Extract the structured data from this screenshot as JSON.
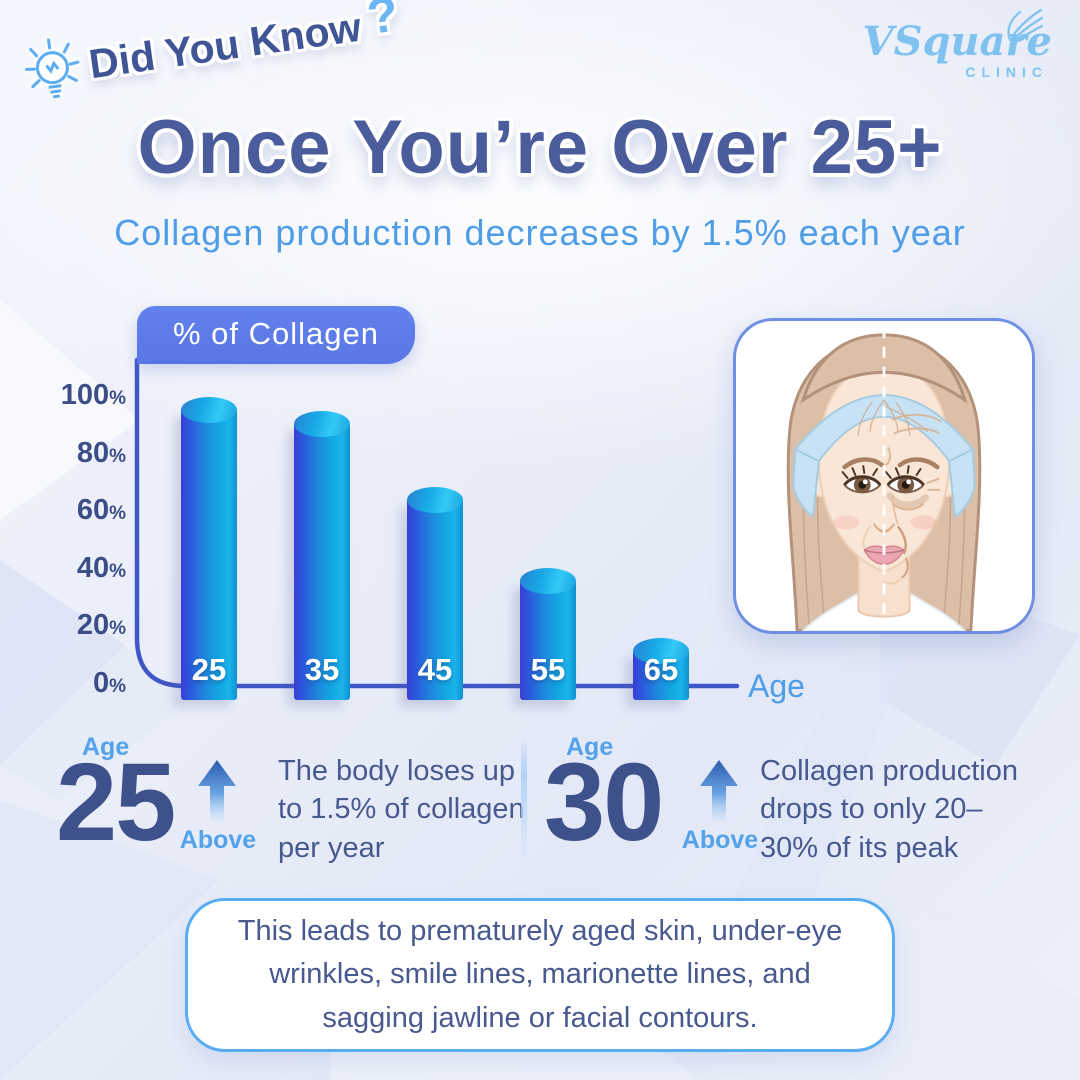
{
  "header": {
    "badge_text": "Did You Know",
    "badge_question": "?",
    "logo_name": "VSquare",
    "logo_subtitle": "CLINIC",
    "title": "Once You’re Over 25+",
    "subtitle": "Collagen production decreases by 1.5% each year"
  },
  "chart": {
    "badge_label": "% of Collagen",
    "x_axis_label": "Age",
    "y_ticks": [
      {
        "v": "100",
        "s": "%"
      },
      {
        "v": "80",
        "s": "%"
      },
      {
        "v": "60",
        "s": "%"
      },
      {
        "v": "40",
        "s": "%"
      },
      {
        "v": "20",
        "s": "%"
      },
      {
        "v": "0",
        "s": "%"
      }
    ]
  },
  "chart_data": {
    "type": "bar",
    "title": "% of Collagen",
    "xlabel": "Age",
    "ylabel": "% of Collagen",
    "categories": [
      "25",
      "35",
      "45",
      "55",
      "65"
    ],
    "values": [
      100,
      95,
      69,
      41,
      17
    ],
    "ylim": [
      0,
      100
    ],
    "y_tick_step": 20,
    "grid": false,
    "legend": "none",
    "bar_style": "3d-cylinder-blue-cyan-gradient"
  },
  "info_sections": [
    {
      "age_label": "Age",
      "age": "25",
      "above": "Above",
      "text": "The body loses up to 1.5% of collagen per year"
    },
    {
      "age_label": "Age",
      "age": "30",
      "above": "Above",
      "text": "Collagen production drops to only 20–30% of its peak"
    }
  ],
  "footer": {
    "text": "This leads to prematurely aged skin, under-eye wrinkles, smile lines, marionette lines, and sagging jawline or facial contours."
  },
  "icons": {
    "lightbulb": "lightbulb-icon",
    "swan": "swan-icon",
    "up_arrow": "up-arrow-icon",
    "face": "split-face-aging-illustration"
  },
  "colors": {
    "title": "#4b5c9d",
    "subtitle": "#4f9de6",
    "dark_text": "#48598f",
    "light_blue": "#54a2ea",
    "chart_badge_bg": "#5e7ce9",
    "axis": "#4156c6",
    "bar_left": "#3a3ed6",
    "bar_right": "#14aae4",
    "bar_top": "#29c2f2",
    "box_border": "#58acf2",
    "logo_blue": "#7fc2f0"
  }
}
